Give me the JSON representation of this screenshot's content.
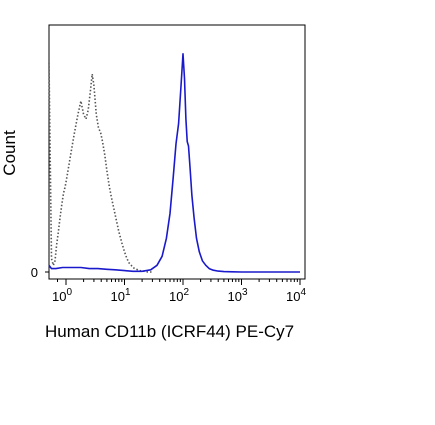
{
  "chart_data": {
    "type": "line",
    "title": "",
    "xlabel": "Human CD11b (ICRF44) PE-Cy7",
    "ylabel": "Count",
    "x_scale": "biexponential",
    "xlim": [
      0,
      10000
    ],
    "ylim": [
      0,
      100
    ],
    "grid": false,
    "legend": "none",
    "x_ticks": [
      {
        "value": 1,
        "base": "10",
        "exp": "0"
      },
      {
        "value": 10,
        "base": "10",
        "exp": "1"
      },
      {
        "value": 100,
        "base": "10",
        "exp": "2"
      },
      {
        "value": 1000,
        "base": "10",
        "exp": "3"
      },
      {
        "value": 10000,
        "base": "10",
        "exp": "4"
      }
    ],
    "y_ticks": [
      {
        "value": 0,
        "label": "0"
      }
    ],
    "series": [
      {
        "color": "#555555",
        "style": "dotted",
        "x": [
          0,
          0.15,
          0.25,
          0.35,
          0.45,
          0.55,
          0.65,
          0.75,
          0.85,
          0.95,
          1.05,
          1.2,
          1.4,
          1.6,
          1.8,
          2.0,
          2.2,
          2.4,
          2.6,
          2.8,
          3.0,
          3.3,
          3.6,
          3.9,
          4.2,
          4.6,
          5.0,
          5.5,
          6.0,
          7.0,
          8.0,
          9.0,
          10,
          11,
          12,
          13,
          14,
          15,
          17,
          19,
          22,
          25,
          30
        ],
        "values": [
          93,
          6,
          3,
          5,
          12,
          18,
          24,
          30,
          35,
          38,
          43,
          52,
          62,
          70,
          76,
          70,
          68,
          72,
          80,
          88,
          83,
          70,
          64,
          62,
          58,
          52,
          45,
          38,
          33,
          25,
          18,
          13,
          9,
          6,
          4,
          3,
          2,
          1.5,
          1,
          0.5,
          0.3,
          0,
          0
        ]
      },
      {
        "color": "#1a1acc",
        "style": "solid",
        "x": [
          0,
          0.15,
          0.4,
          0.8,
          1.2,
          1.8,
          2.5,
          3.5,
          5,
          7,
          10,
          14,
          20,
          28,
          36,
          44,
          52,
          60,
          68,
          76,
          84,
          92,
          100,
          106,
          112,
          118,
          124,
          132,
          142,
          155,
          170,
          190,
          215,
          245,
          280,
          330,
          400,
          500,
          700,
          1000,
          2000,
          5000,
          10000
        ],
        "values": [
          3,
          1.5,
          1.5,
          2,
          2,
          2,
          1.5,
          1.5,
          1.2,
          1,
          0.6,
          0.3,
          0.3,
          1,
          3,
          7,
          15,
          26,
          42,
          57,
          66,
          82,
          97,
          86,
          68,
          58,
          56,
          46,
          34,
          24,
          15,
          9,
          5,
          3,
          1.5,
          0.8,
          0.4,
          0.2,
          0.1,
          0,
          0,
          0,
          0
        ]
      }
    ]
  }
}
